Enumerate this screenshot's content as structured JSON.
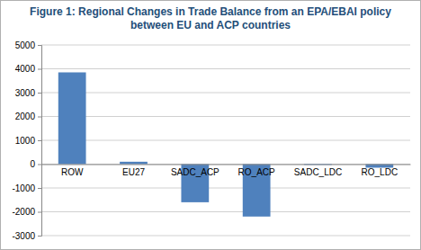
{
  "chart_data": {
    "type": "bar",
    "title": "Figure 1: Regional Changes in Trade Balance from an EPA/EBAI policy between EU and ACP countries",
    "categories": [
      "ROW",
      "EU27",
      "SADC_ACP",
      "RO_ACP",
      "SADC_LDC",
      "RO_LDC"
    ],
    "values": [
      3850,
      100,
      -1600,
      -2200,
      -30,
      -150
    ],
    "color": "#4f81bd",
    "ylim": [
      -3000,
      5000
    ],
    "yticks": [
      -3000,
      -2000,
      -1000,
      0,
      1000,
      2000,
      3000,
      4000,
      5000
    ],
    "grid": true
  }
}
